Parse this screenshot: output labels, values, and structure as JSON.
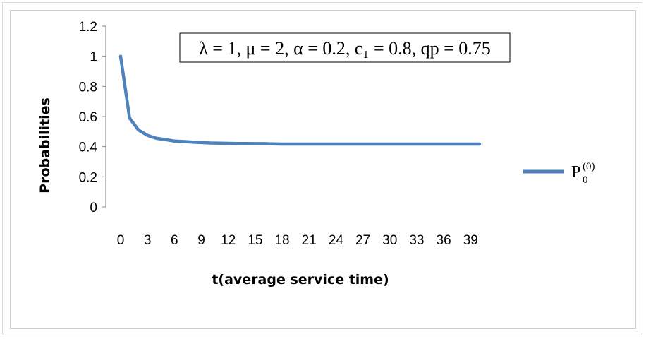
{
  "chart_data": {
    "type": "line",
    "title": "",
    "annotation": "λ = 1, μ = 2, α = 0.2, c₁ = 0.8, qp = 0.75",
    "xlabel": "t(average service time)",
    "ylabel": "Probabilities",
    "x": [
      0,
      1,
      2,
      3,
      4,
      5,
      6,
      7,
      8,
      9,
      10,
      11,
      12,
      13,
      14,
      15,
      16,
      17,
      18,
      19,
      20,
      21,
      22,
      23,
      24,
      25,
      26,
      27,
      28,
      29,
      30,
      31,
      32,
      33,
      34,
      35,
      36,
      37,
      38,
      39,
      40
    ],
    "x_tick_labels": [
      "0",
      "3",
      "6",
      "9",
      "12",
      "15",
      "18",
      "21",
      "24",
      "27",
      "30",
      "33",
      "36",
      "39"
    ],
    "y_tick_labels": [
      "0",
      "0.2",
      "0.4",
      "0.6",
      "0.8",
      "1",
      "1.2"
    ],
    "ylim": [
      0,
      1.2
    ],
    "y_ticks": [
      0,
      0.2,
      0.4,
      0.6,
      0.8,
      1,
      1.2
    ],
    "grid": false,
    "legend_position": "right",
    "series": [
      {
        "name": "P0(0)",
        "name_main": "P",
        "name_sub": "0",
        "name_sup": "(0)",
        "color": "#4f81bd",
        "values": [
          1.0,
          0.59,
          0.51,
          0.475,
          0.455,
          0.447,
          0.437,
          0.434,
          0.43,
          0.427,
          0.424,
          0.423,
          0.422,
          0.421,
          0.421,
          0.42,
          0.42,
          0.418,
          0.417,
          0.417,
          0.417,
          0.417,
          0.417,
          0.417,
          0.417,
          0.417,
          0.417,
          0.417,
          0.417,
          0.417,
          0.417,
          0.417,
          0.417,
          0.417,
          0.417,
          0.417,
          0.417,
          0.417,
          0.417,
          0.417,
          0.417
        ]
      }
    ]
  }
}
